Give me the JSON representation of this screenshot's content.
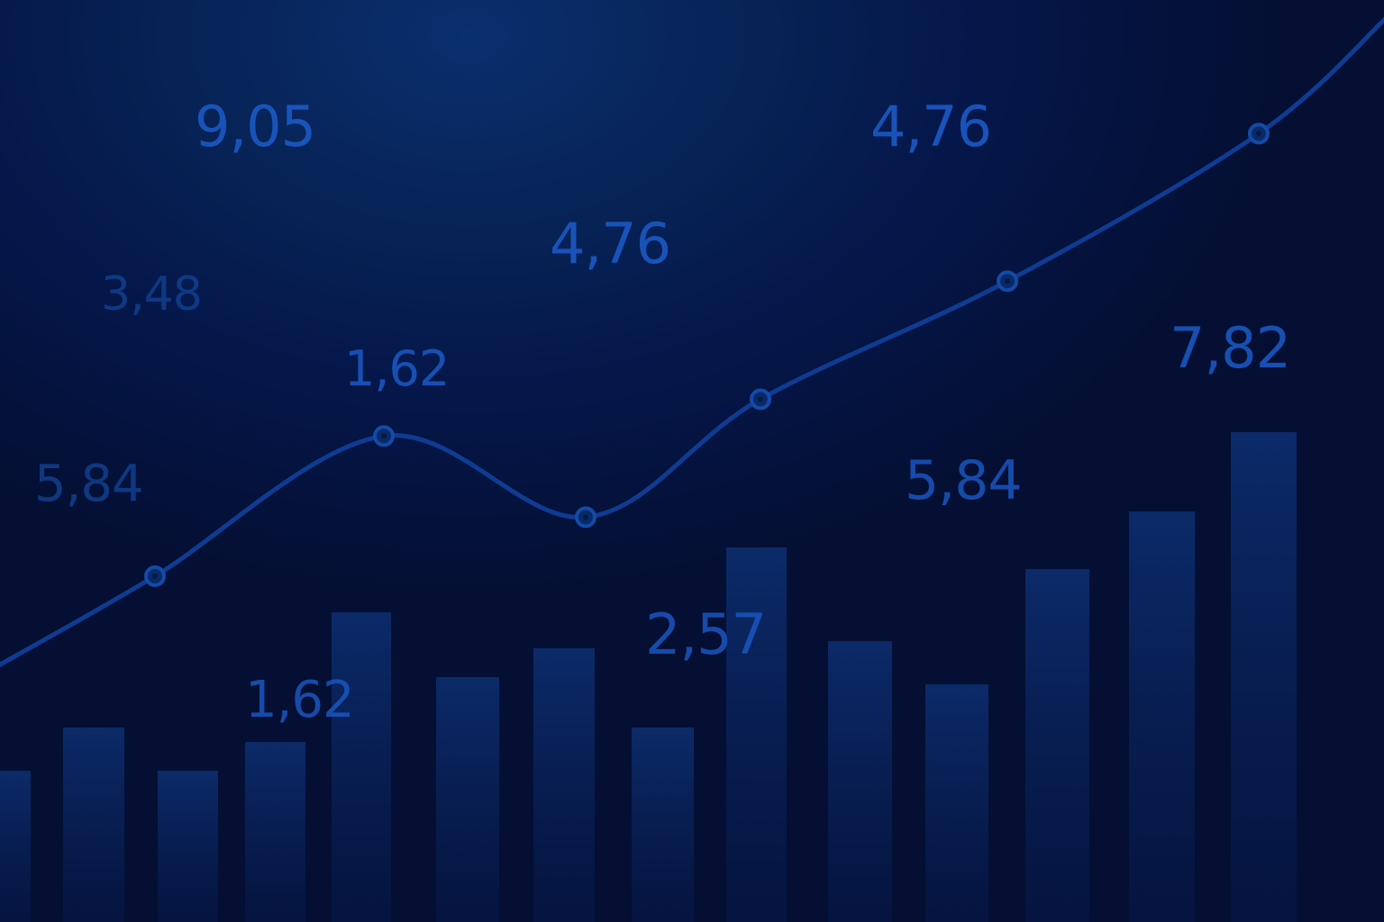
{
  "chart_data": {
    "type": "bar",
    "bars": {
      "values": [
        0.21,
        0.27,
        0.21,
        0.25,
        0.43,
        0.34,
        0.38,
        0.27,
        0.52,
        0.39,
        0.33,
        0.49,
        0.57,
        0.68
      ],
      "ylim": [
        0,
        1
      ]
    },
    "line": {
      "values": [
        0.3,
        0.42,
        0.61,
        0.5,
        0.66,
        0.82,
        1.02
      ],
      "markers": [
        false,
        true,
        true,
        true,
        true,
        true,
        true
      ],
      "ylim": [
        0,
        1.25
      ]
    },
    "floating_values": [
      "9,05",
      "4,76",
      "4,76",
      "3,48",
      "1,62",
      "7,82",
      "5,84",
      "5,84",
      "2,57",
      "1,62"
    ],
    "grid": false,
    "legend": "none"
  },
  "colors": {
    "background_top": "#0a2f6e",
    "background_bottom": "#040f33",
    "bar": "#0b2a68",
    "line": "#0f3c92",
    "marker_fill": "#0a2a66",
    "marker_stroke": "#144aa8",
    "label_bright": "#1a56c0",
    "label_dim": "#123f8e"
  }
}
